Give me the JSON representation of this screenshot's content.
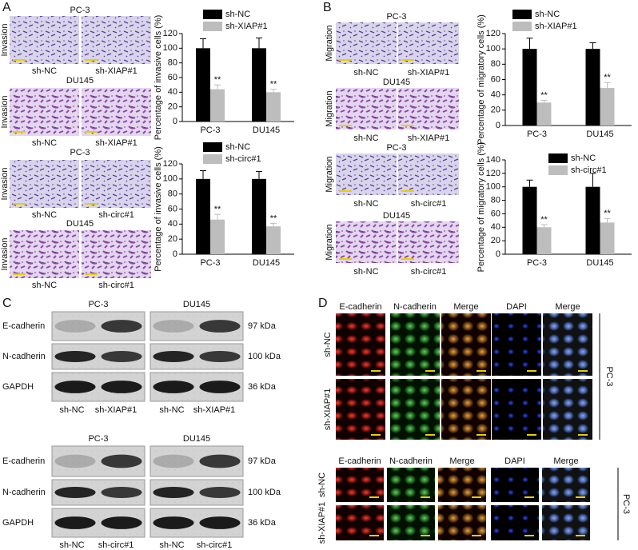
{
  "panels": {
    "A": {
      "label": "A",
      "groups": [
        {
          "cell": "PC-3",
          "row_label": "Invasion",
          "captions": [
            "sh-NC",
            "sh-XIAP#1"
          ]
        },
        {
          "cell": "DU145",
          "row_label": "Invasion",
          "captions": [
            "sh-NC",
            "sh-XIAP#1"
          ]
        },
        {
          "cell": "PC-3",
          "row_label": "Invasion",
          "captions": [
            "sh-NC",
            "sh-circ#1"
          ]
        },
        {
          "cell": "DU145",
          "row_label": "Invasion",
          "captions": [
            "sh-NC",
            "sh-circ#1"
          ]
        }
      ]
    },
    "B": {
      "label": "B",
      "groups": [
        {
          "cell": "PC-3",
          "row_label": "Migration",
          "captions": [
            "sh-NC",
            "sh-XIAP#1"
          ]
        },
        {
          "cell": "DU145",
          "row_label": "Migration",
          "captions": [
            "sh-NC",
            "sh-XIAP#1"
          ]
        },
        {
          "cell": "PC-3",
          "row_label": "Migration",
          "captions": [
            "sh-NC",
            "sh-circ#1"
          ]
        },
        {
          "cell": "DU145",
          "row_label": "Migration",
          "captions": [
            "sh-NC",
            "sh-circ#1"
          ]
        }
      ]
    },
    "C": {
      "label": "C",
      "blots": [
        {
          "cells": [
            "PC-3",
            "DU145"
          ],
          "proteins": [
            "E-cadherin",
            "N-cadherin",
            "GAPDH"
          ],
          "sizes": [
            "97 kDa",
            "100 kDa",
            "36 kDa"
          ],
          "lanes": [
            "sh-NC",
            "sh-XIAP#1",
            "sh-NC",
            "sh-XIAP#1"
          ]
        },
        {
          "cells": [
            "PC-3",
            "DU145"
          ],
          "proteins": [
            "E-cadherin",
            "N-cadherin",
            "GAPDH"
          ],
          "sizes": [
            "97 kDa",
            "100 kDa",
            "36 kDa"
          ],
          "lanes": [
            "sh-NC",
            "sh-circ#1",
            "sh-NC",
            "sh-circ#1"
          ]
        }
      ]
    },
    "D": {
      "label": "D",
      "blocks": [
        {
          "columns": [
            "E-cadherin",
            "N-cadherin",
            "Merge",
            "DAPI",
            "Merge"
          ],
          "rows": [
            "sh-NC",
            "sh-XIAP#1"
          ],
          "cell": "PC-3"
        },
        {
          "columns": [
            "E-cadherin",
            "N-cadherin",
            "Merge",
            "DAPI",
            "Merge"
          ],
          "rows": [
            "sh-NC",
            "sh-XIAP#1"
          ],
          "cell": "PC-3"
        }
      ]
    }
  },
  "chart_data": [
    {
      "type": "bar",
      "y_label": "Percentage of invasive cells (%)",
      "categories": [
        "PC-3",
        "DU145"
      ],
      "series": [
        {
          "name": "sh-NC",
          "color": "#000000",
          "values": [
            100,
            100
          ],
          "errors": [
            13,
            14
          ]
        },
        {
          "name": "sh-XIAP#1",
          "color": "#bdbdbd",
          "values": [
            44,
            40
          ],
          "errors": [
            6,
            4
          ]
        }
      ],
      "annotations": [
        "**",
        "**"
      ],
      "ylim": [
        0,
        120
      ],
      "yticks": [
        0,
        20,
        40,
        60,
        80,
        100,
        120
      ]
    },
    {
      "type": "bar",
      "y_label": "Percentage of invasive cells (%)",
      "categories": [
        "PC-3",
        "DU145"
      ],
      "series": [
        {
          "name": "sh-NC",
          "color": "#000000",
          "values": [
            100,
            100
          ],
          "errors": [
            11,
            10
          ]
        },
        {
          "name": "sh-circ#1",
          "color": "#bdbdbd",
          "values": [
            46,
            37
          ],
          "errors": [
            7,
            4
          ]
        }
      ],
      "annotations": [
        "**",
        "**"
      ],
      "ylim": [
        0,
        120
      ],
      "yticks": [
        0,
        20,
        40,
        60,
        80,
        100,
        120
      ]
    },
    {
      "type": "bar",
      "y_label": "Percentage of migratory cells (%)",
      "categories": [
        "PC-3",
        "DU145"
      ],
      "series": [
        {
          "name": "sh-NC",
          "color": "#000000",
          "values": [
            100,
            100
          ],
          "errors": [
            14,
            8
          ]
        },
        {
          "name": "sh-XIAP#1",
          "color": "#bdbdbd",
          "values": [
            30,
            49
          ],
          "errors": [
            3,
            7
          ]
        }
      ],
      "annotations": [
        "**",
        "**"
      ],
      "ylim": [
        0,
        120
      ],
      "yticks": [
        0,
        20,
        40,
        60,
        80,
        100,
        120
      ]
    },
    {
      "type": "bar",
      "y_label": "Percentage of migratory cells (%)",
      "categories": [
        "PC-3",
        "DU145"
      ],
      "series": [
        {
          "name": "sh-NC",
          "color": "#000000",
          "values": [
            100,
            100
          ],
          "errors": [
            10,
            20
          ]
        },
        {
          "name": "sh-circ#1",
          "color": "#bdbdbd",
          "values": [
            40,
            47
          ],
          "errors": [
            4,
            6
          ]
        }
      ],
      "annotations": [
        "**",
        "**"
      ],
      "ylim": [
        0,
        140
      ],
      "yticks": [
        0,
        20,
        40,
        60,
        80,
        100,
        120,
        140
      ]
    }
  ]
}
